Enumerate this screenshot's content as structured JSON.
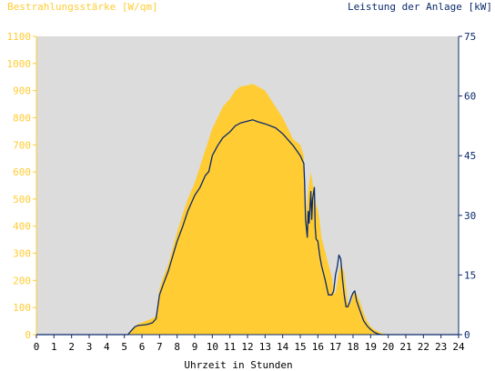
{
  "chart_data": {
    "type": "area",
    "left_axis_title": "Bestrahlungsstärke [W/qm]",
    "right_axis_title": "Leistung der Anlage [kW]",
    "xlabel": "Uhrzeit in Stunden",
    "x_ticks": [
      "0",
      "1",
      "2",
      "3",
      "4",
      "5",
      "6",
      "7",
      "8",
      "9",
      "10",
      "11",
      "12",
      "13",
      "14",
      "15",
      "16",
      "17",
      "18",
      "19",
      "20",
      "21",
      "22",
      "23",
      "24"
    ],
    "left_ticks": [
      "0",
      "100",
      "200",
      "300",
      "400",
      "500",
      "600",
      "700",
      "800",
      "900",
      "1000",
      "1100"
    ],
    "right_ticks": [
      "0",
      "15",
      "30",
      "45",
      "60",
      "75"
    ],
    "xlim": [
      0,
      24
    ],
    "ylim_left": [
      0,
      1100
    ],
    "ylim_right": [
      0,
      75
    ],
    "grid": false,
    "colors": {
      "irradiance": "#ffcc33",
      "power": "#0a2a6b",
      "plot_bg": "#dcdcdc",
      "left_axis": "#ffcc33",
      "right_axis": "#0a2a6b"
    },
    "series": [
      {
        "axis": "left",
        "style": "filled-area",
        "x": [
          5.2,
          5.4,
          5.6,
          5.8,
          6.0,
          6.2,
          6.4,
          6.6,
          6.8,
          6.9,
          7.0,
          7.2,
          7.5,
          7.8,
          8.0,
          8.3,
          8.6,
          9.0,
          9.3,
          9.6,
          9.8,
          10.0,
          10.3,
          10.6,
          11.0,
          11.3,
          11.6,
          12.0,
          12.3,
          12.6,
          13.0,
          13.3,
          13.6,
          14.0,
          14.3,
          14.6,
          15.0,
          15.2,
          15.3,
          15.4,
          15.5,
          15.6,
          15.7,
          15.8,
          15.9,
          16.0,
          16.1,
          16.2,
          16.4,
          16.6,
          16.8,
          16.9,
          17.0,
          17.1,
          17.2,
          17.3,
          17.5,
          17.6,
          17.7,
          17.8,
          17.9,
          18.0,
          18.1,
          18.2,
          18.4,
          18.6,
          18.8,
          19.0,
          19.2,
          19.4,
          19.6,
          19.8,
          20.0,
          20.2
        ],
        "values": [
          0,
          15,
          30,
          40,
          45,
          50,
          55,
          60,
          70,
          120,
          170,
          210,
          260,
          330,
          380,
          440,
          500,
          560,
          620,
          680,
          720,
          760,
          800,
          840,
          870,
          900,
          915,
          920,
          925,
          915,
          900,
          870,
          840,
          800,
          760,
          720,
          700,
          660,
          420,
          500,
          560,
          600,
          560,
          520,
          480,
          460,
          420,
          360,
          310,
          260,
          210,
          160,
          150,
          190,
          230,
          260,
          230,
          170,
          120,
          110,
          120,
          150,
          160,
          150,
          120,
          80,
          50,
          30,
          20,
          12,
          6,
          3,
          0,
          0
        ]
      },
      {
        "axis": "right",
        "style": "line",
        "x": [
          5.0,
          5.2,
          5.4,
          5.6,
          5.8,
          6.0,
          6.2,
          6.4,
          6.6,
          6.8,
          6.9,
          7.0,
          7.2,
          7.5,
          7.8,
          8.0,
          8.3,
          8.6,
          9.0,
          9.3,
          9.6,
          9.8,
          10.0,
          10.3,
          10.6,
          11.0,
          11.3,
          11.6,
          12.0,
          12.3,
          12.6,
          13.0,
          13.3,
          13.6,
          14.0,
          14.3,
          14.6,
          15.0,
          15.2,
          15.25,
          15.3,
          15.4,
          15.45,
          15.5,
          15.6,
          15.65,
          15.7,
          15.8,
          15.85,
          15.9,
          16.0,
          16.1,
          16.2,
          16.4,
          16.6,
          16.8,
          16.9,
          17.0,
          17.1,
          17.2,
          17.3,
          17.4,
          17.5,
          17.6,
          17.7,
          17.8,
          17.9,
          18.0,
          18.1,
          18.2,
          18.4,
          18.6,
          18.8,
          19.0,
          19.2,
          19.4,
          19.6,
          19.8,
          20.0,
          24.0
        ],
        "values": [
          0,
          0,
          1,
          2,
          2.3,
          2.4,
          2.5,
          2.7,
          3.0,
          4.0,
          7,
          10,
          12.5,
          16,
          20.5,
          23.5,
          27,
          31,
          35,
          37,
          40,
          41,
          45,
          47.5,
          49.5,
          51,
          52.5,
          53.2,
          53.7,
          54,
          53.5,
          53,
          52.5,
          52,
          50.5,
          49,
          47.5,
          45,
          43,
          38,
          29,
          24.5,
          31,
          28,
          36,
          29,
          34,
          37,
          27,
          24,
          23.5,
          20,
          17.5,
          14,
          10,
          10,
          11,
          15,
          17,
          20,
          19,
          14,
          10,
          7,
          7,
          8,
          9.5,
          10.5,
          11,
          8.5,
          6,
          3.5,
          2.2,
          1.3,
          0.6,
          0.2,
          0,
          0,
          0,
          0
        ]
      }
    ]
  }
}
